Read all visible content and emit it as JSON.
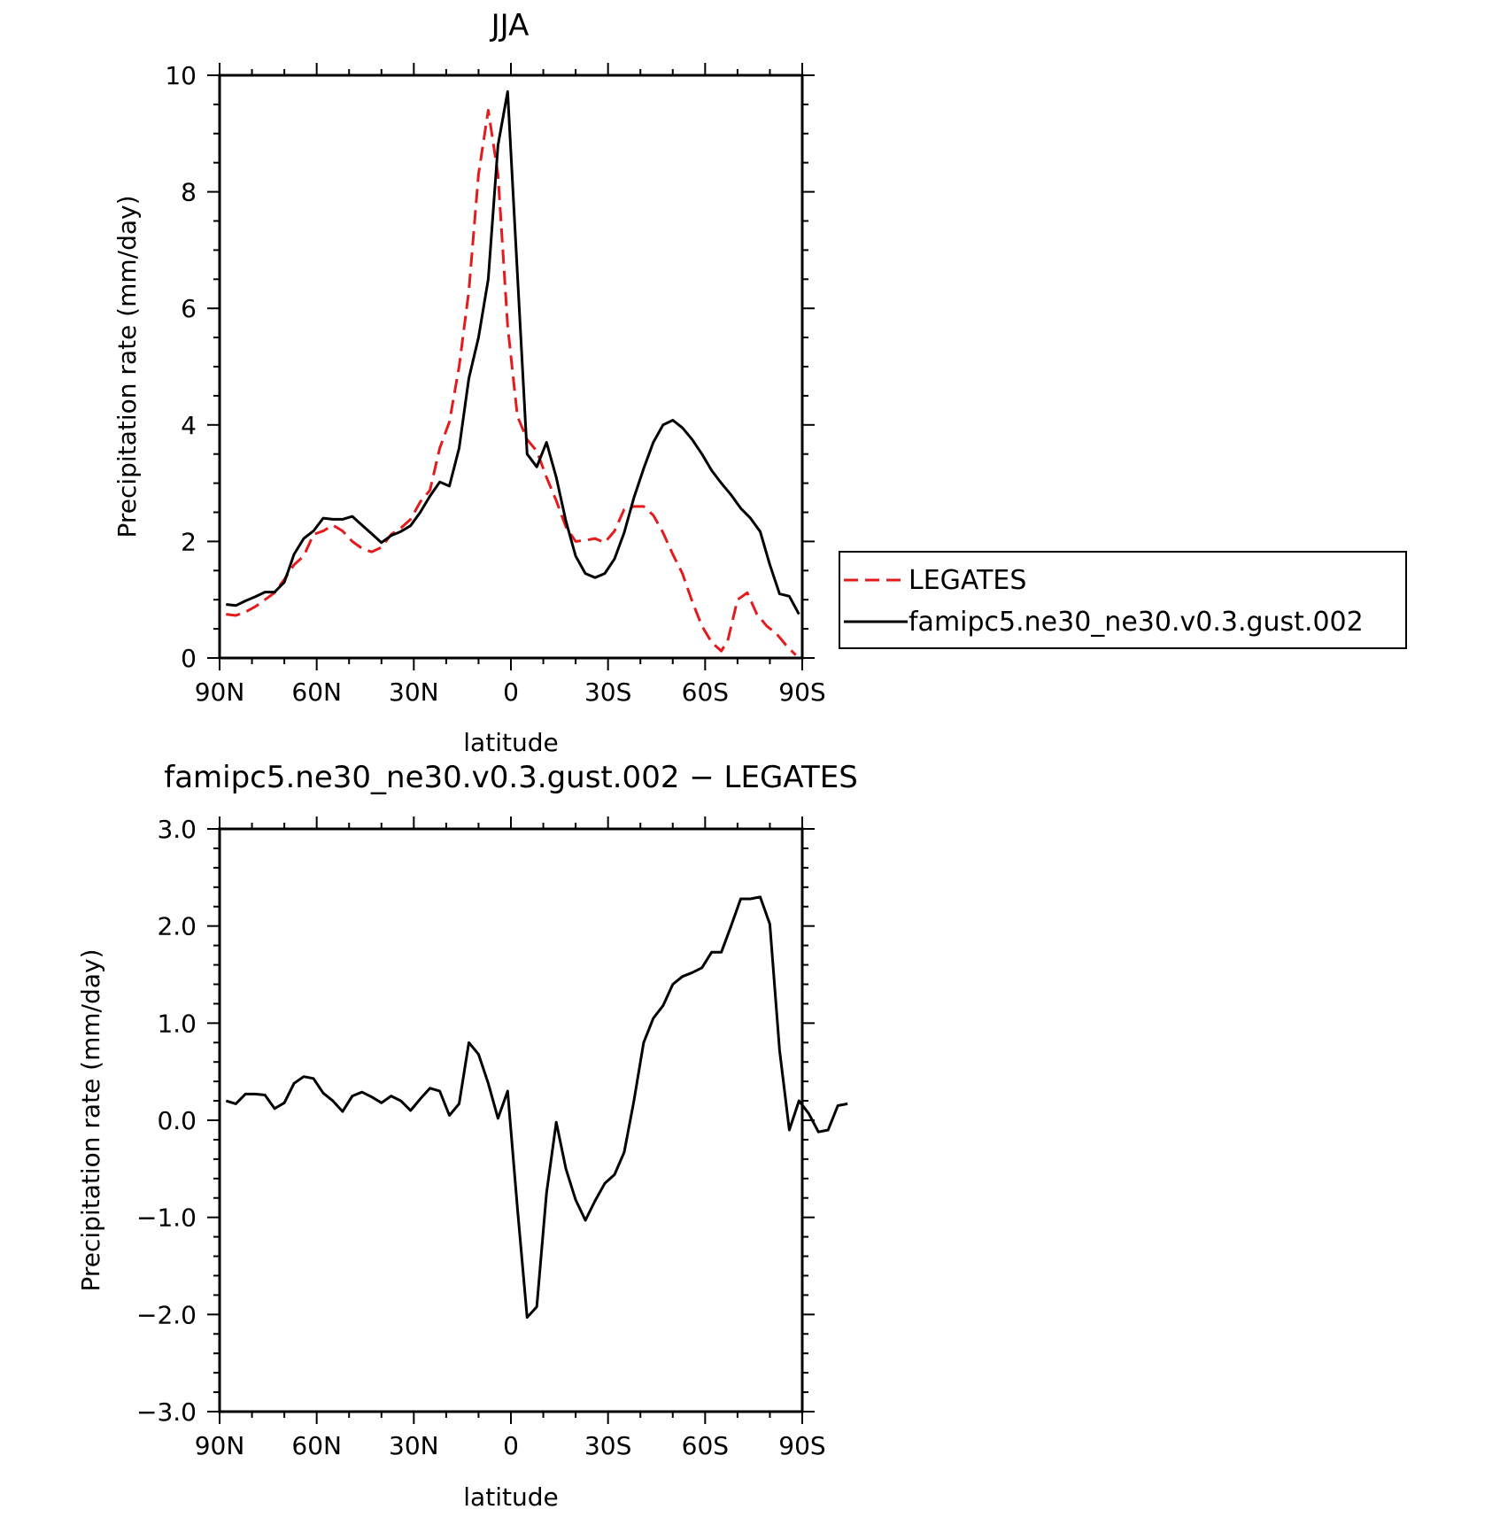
{
  "chart_data": [
    {
      "type": "line",
      "title": "JJA",
      "xlabel": "latitude",
      "ylabel": "Precipitation rate (mm/day)",
      "xlim": [
        90,
        -90
      ],
      "ylim": [
        0,
        10
      ],
      "x_ticks": [
        90,
        60,
        30,
        0,
        -30,
        -60,
        -90
      ],
      "x_tick_labels": [
        "90N",
        "60N",
        "30N",
        "0",
        "30S",
        "60S",
        "90S"
      ],
      "y_ticks": [
        0,
        2,
        4,
        6,
        8,
        10
      ],
      "y_tick_labels": [
        "0",
        "2",
        "4",
        "6",
        "8",
        "10"
      ],
      "legend_position": "right",
      "series": [
        {
          "name": "LEGATES",
          "color": "#e41a1c",
          "dash": "dashed",
          "points": [
            [
              88,
              0.75
            ],
            [
              85,
              0.73
            ],
            [
              82,
              0.79
            ],
            [
              79,
              0.88
            ],
            [
              76,
              1.0
            ],
            [
              73,
              1.12
            ],
            [
              70,
              1.35
            ],
            [
              67,
              1.6
            ],
            [
              64,
              1.75
            ],
            [
              61,
              2.12
            ],
            [
              58,
              2.18
            ],
            [
              55,
              2.28
            ],
            [
              52,
              2.18
            ],
            [
              49,
              2.0
            ],
            [
              46,
              1.88
            ],
            [
              43,
              1.82
            ],
            [
              40,
              1.9
            ],
            [
              37,
              2.12
            ],
            [
              34,
              2.23
            ],
            [
              31,
              2.38
            ],
            [
              28,
              2.68
            ],
            [
              25,
              2.88
            ],
            [
              22,
              3.6
            ],
            [
              19,
              4.05
            ],
            [
              16,
              5.0
            ],
            [
              13,
              6.3
            ],
            [
              10,
              8.3
            ],
            [
              7,
              9.4
            ],
            [
              4,
              8.3
            ],
            [
              1,
              5.7
            ],
            [
              -2,
              4.15
            ],
            [
              -5,
              3.75
            ],
            [
              -8,
              3.55
            ],
            [
              -11,
              3.1
            ],
            [
              -14,
              2.7
            ],
            [
              -17,
              2.25
            ],
            [
              -20,
              2.0
            ],
            [
              -23,
              2.02
            ],
            [
              -26,
              2.05
            ],
            [
              -29,
              1.98
            ],
            [
              -32,
              2.18
            ],
            [
              -35,
              2.55
            ],
            [
              -38,
              2.6
            ],
            [
              -41,
              2.6
            ],
            [
              -44,
              2.45
            ],
            [
              -47,
              2.15
            ],
            [
              -50,
              1.78
            ],
            [
              -53,
              1.45
            ],
            [
              -56,
              0.97
            ],
            [
              -59,
              0.55
            ],
            [
              -62,
              0.27
            ],
            [
              -65,
              0.12
            ],
            [
              -67,
              0.3
            ],
            [
              -70,
              1.0
            ],
            [
              -73,
              1.12
            ],
            [
              -76,
              0.75
            ],
            [
              -79,
              0.55
            ],
            [
              -82,
              0.42
            ],
            [
              -85,
              0.22
            ],
            [
              -88,
              0.05
            ]
          ]
        },
        {
          "name": "famipc5.ne30_ne30.v0.3.gust.002",
          "color": "#000000",
          "dash": "solid",
          "points": [
            [
              88,
              0.92
            ],
            [
              85,
              0.9
            ],
            [
              82,
              0.98
            ],
            [
              79,
              1.05
            ],
            [
              76,
              1.13
            ],
            [
              73,
              1.13
            ],
            [
              70,
              1.3
            ],
            [
              67,
              1.78
            ],
            [
              64,
              2.05
            ],
            [
              61,
              2.18
            ],
            [
              58,
              2.4
            ],
            [
              55,
              2.38
            ],
            [
              52,
              2.38
            ],
            [
              49,
              2.43
            ],
            [
              46,
              2.28
            ],
            [
              43,
              2.13
            ],
            [
              40,
              1.98
            ],
            [
              37,
              2.1
            ],
            [
              34,
              2.17
            ],
            [
              31,
              2.27
            ],
            [
              28,
              2.5
            ],
            [
              25,
              2.78
            ],
            [
              22,
              3.02
            ],
            [
              19,
              2.95
            ],
            [
              16,
              3.6
            ],
            [
              13,
              4.8
            ],
            [
              10,
              5.5
            ],
            [
              7,
              6.5
            ],
            [
              4,
              8.8
            ],
            [
              1,
              9.72
            ],
            [
              -2,
              6.6
            ],
            [
              -5,
              3.5
            ],
            [
              -8,
              3.28
            ],
            [
              -11,
              3.7
            ],
            [
              -14,
              3.1
            ],
            [
              -17,
              2.35
            ],
            [
              -20,
              1.75
            ],
            [
              -23,
              1.45
            ],
            [
              -26,
              1.38
            ],
            [
              -29,
              1.45
            ],
            [
              -32,
              1.7
            ],
            [
              -35,
              2.15
            ],
            [
              -38,
              2.75
            ],
            [
              -41,
              3.25
            ],
            [
              -44,
              3.7
            ],
            [
              -47,
              4.0
            ],
            [
              -50,
              4.08
            ],
            [
              -53,
              3.95
            ],
            [
              -56,
              3.75
            ],
            [
              -59,
              3.5
            ],
            [
              -62,
              3.22
            ],
            [
              -65,
              3.0
            ],
            [
              -68,
              2.8
            ],
            [
              -71,
              2.57
            ],
            [
              -74,
              2.4
            ],
            [
              -77,
              2.17
            ],
            [
              -80,
              1.6
            ],
            [
              -83,
              1.1
            ],
            [
              -86,
              1.06
            ],
            [
              -89,
              0.75
            ]
          ]
        }
      ]
    },
    {
      "type": "line",
      "title": "famipc5.ne30_ne30.v0.3.gust.002 − LEGATES",
      "xlabel": "latitude",
      "ylabel": "Precipitation rate (mm/day)",
      "xlim": [
        90,
        -90
      ],
      "ylim": [
        -3.0,
        3.0
      ],
      "x_ticks": [
        90,
        60,
        30,
        0,
        -30,
        -60,
        -90
      ],
      "x_tick_labels": [
        "90N",
        "60N",
        "30N",
        "0",
        "30S",
        "60S",
        "90S"
      ],
      "y_ticks": [
        -3.0,
        -2.0,
        -1.0,
        0.0,
        1.0,
        2.0,
        3.0
      ],
      "y_tick_labels": [
        "−3.0",
        "−2.0",
        "−1.0",
        "0.0",
        "1.0",
        "2.0",
        "3.0"
      ],
      "series": [
        {
          "color": "#000000",
          "dash": "solid",
          "points": [
            [
              88,
              0.2
            ],
            [
              85,
              0.17
            ],
            [
              82,
              0.27
            ],
            [
              79,
              0.27
            ],
            [
              76,
              0.26
            ],
            [
              73,
              0.12
            ],
            [
              70,
              0.18
            ],
            [
              67,
              0.38
            ],
            [
              64,
              0.45
            ],
            [
              61,
              0.43
            ],
            [
              58,
              0.28
            ],
            [
              55,
              0.2
            ],
            [
              52,
              0.09
            ],
            [
              49,
              0.25
            ],
            [
              46,
              0.29
            ],
            [
              43,
              0.24
            ],
            [
              40,
              0.18
            ],
            [
              37,
              0.25
            ],
            [
              34,
              0.2
            ],
            [
              31,
              0.1
            ],
            [
              28,
              0.22
            ],
            [
              25,
              0.33
            ],
            [
              22,
              0.3
            ],
            [
              19,
              0.05
            ],
            [
              16,
              0.17
            ],
            [
              13,
              0.8
            ],
            [
              10,
              0.68
            ],
            [
              7,
              0.38
            ],
            [
              4,
              0.02
            ],
            [
              1,
              0.3
            ],
            [
              -2,
              -0.9
            ],
            [
              -5,
              -2.03
            ],
            [
              -8,
              -1.92
            ],
            [
              -11,
              -0.75
            ],
            [
              -14,
              -0.02
            ],
            [
              -17,
              -0.5
            ],
            [
              -20,
              -0.82
            ],
            [
              -23,
              -1.03
            ],
            [
              -26,
              -0.83
            ],
            [
              -29,
              -0.65
            ],
            [
              -32,
              -0.56
            ],
            [
              -35,
              -0.33
            ],
            [
              -38,
              0.2
            ],
            [
              -41,
              0.8
            ],
            [
              -44,
              1.05
            ],
            [
              -47,
              1.18
            ],
            [
              -50,
              1.4
            ],
            [
              -53,
              1.48
            ],
            [
              -56,
              1.52
            ],
            [
              -59,
              1.57
            ],
            [
              -62,
              1.73
            ],
            [
              -65,
              1.73
            ],
            [
              -68,
              2.0
            ],
            [
              -71,
              2.28
            ],
            [
              -74,
              2.28
            ],
            [
              -77,
              2.3
            ],
            [
              -80,
              2.02
            ],
            [
              -83,
              0.72
            ],
            [
              -86,
              -0.1
            ],
            [
              -89,
              0.2
            ],
            [
              -92,
              0.07
            ],
            [
              -95,
              -0.12
            ],
            [
              -98,
              -0.1
            ],
            [
              -101,
              0.15
            ],
            [
              -104,
              0.17
            ]
          ]
        }
      ]
    }
  ]
}
